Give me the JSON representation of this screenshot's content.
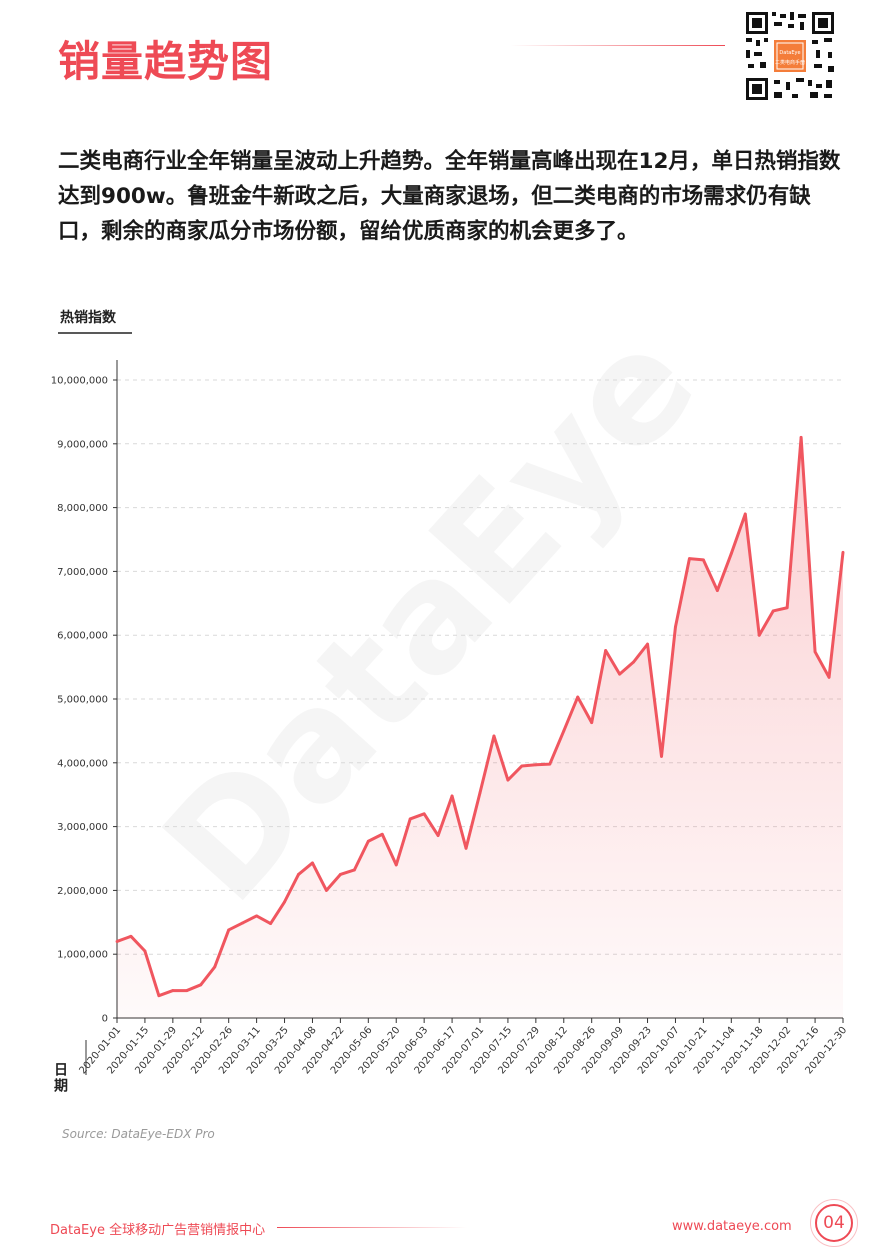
{
  "page": {
    "title": "销量趋势图",
    "description": "二类电商行业全年销量呈波动上升趋势。全年销量高峰出现在12月，单日热销指数达到900w。鲁班金牛新政之后，大量商家退场，但二类电商的市场需求仍有缺口，剩余的商家瓜分市场份额，留给优质商家的机会更多了。",
    "source": "Source: DataEye-EDX Pro",
    "footer_left": "DataEye 全球移动广告营销情报中心",
    "footer_url": "www.dataeye.com",
    "page_number": "04",
    "watermark": "DataEye",
    "qr_text": "二类电商手册"
  },
  "colors": {
    "accent": "#ee4a55",
    "line": "#f0565f"
  },
  "chart_data": {
    "type": "area",
    "ylabel": "热销指数",
    "xlabel": "日期",
    "ylim": [
      0,
      10000000
    ],
    "y_ticks": [
      "0",
      "1,000,000",
      "2,000,000",
      "3,000,000",
      "4,000,000",
      "5,000,000",
      "6,000,000",
      "7,000,000",
      "8,000,000",
      "9,000,000",
      "10,000,000"
    ],
    "grid": true,
    "x_tick_labels": [
      "2020-01-01",
      "2020-01-15",
      "2020-01-29",
      "2020-02-12",
      "2020-02-26",
      "2020-03-11",
      "2020-03-25",
      "2020-04-08",
      "2020-04-22",
      "2020-05-06",
      "2020-05-20",
      "2020-06-03",
      "2020-06-17",
      "2020-07-01",
      "2020-07-15",
      "2020-07-29",
      "2020-08-12",
      "2020-08-26",
      "2020-09-09",
      "2020-09-23",
      "2020-10-07",
      "2020-10-21",
      "2020-11-04",
      "2020-11-18",
      "2020-12-02",
      "2020-12-16",
      "2020-12-30"
    ],
    "series": [
      {
        "x": [
          "2020-01-01",
          "2020-01-08",
          "2020-01-15",
          "2020-01-22",
          "2020-01-29",
          "2020-02-05",
          "2020-02-12",
          "2020-02-19",
          "2020-02-26",
          "2020-03-04",
          "2020-03-11",
          "2020-03-18",
          "2020-03-25",
          "2020-04-01",
          "2020-04-08",
          "2020-04-15",
          "2020-04-22",
          "2020-04-29",
          "2020-05-06",
          "2020-05-13",
          "2020-05-20",
          "2020-05-27",
          "2020-06-03",
          "2020-06-10",
          "2020-06-17",
          "2020-06-24",
          "2020-07-01",
          "2020-07-08",
          "2020-07-15",
          "2020-07-22",
          "2020-07-29",
          "2020-08-05",
          "2020-08-12",
          "2020-08-19",
          "2020-08-26",
          "2020-09-02",
          "2020-09-09",
          "2020-09-16",
          "2020-09-23",
          "2020-09-30",
          "2020-10-07",
          "2020-10-14",
          "2020-10-21",
          "2020-10-28",
          "2020-11-04",
          "2020-11-11",
          "2020-11-18",
          "2020-11-25",
          "2020-12-02",
          "2020-12-09",
          "2020-12-16",
          "2020-12-23",
          "2020-12-30"
        ],
        "values": [
          1200000,
          1280000,
          1050000,
          350000,
          430000,
          430000,
          520000,
          800000,
          1380000,
          1490000,
          1600000,
          1480000,
          1820000,
          2250000,
          2430000,
          2000000,
          2250000,
          2320000,
          2770000,
          2880000,
          2400000,
          3120000,
          3200000,
          2860000,
          3480000,
          2660000,
          3530000,
          4420000,
          3730000,
          3950000,
          3970000,
          3980000,
          4500000,
          5030000,
          4630000,
          5760000,
          5390000,
          5580000,
          5860000,
          4100000,
          6130000,
          7200000,
          7180000,
          6700000,
          7280000,
          7900000,
          6000000,
          6380000,
          6430000,
          9100000,
          5740000,
          5340000,
          7300000
        ]
      }
    ]
  }
}
